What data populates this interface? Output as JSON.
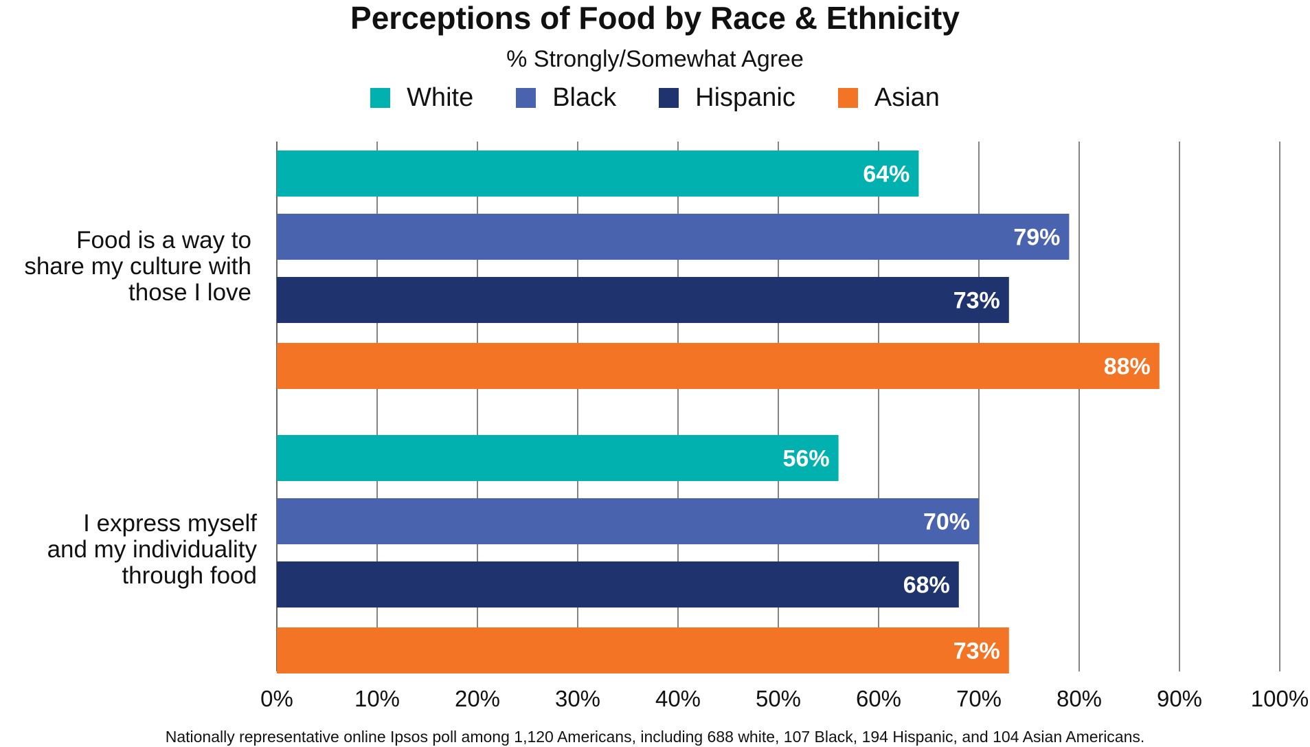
{
  "chart_data": {
    "type": "bar",
    "orientation": "horizontal",
    "title": "Perceptions of Food by Race & Ethnicity",
    "subtitle": "% Strongly/Somewhat Agree",
    "categories": [
      "Food is a way to share my culture with those I love",
      "I express myself and my individuality through food"
    ],
    "category_lines": [
      [
        "Food is a way to",
        "share my culture with",
        "those I love"
      ],
      [
        "I express myself",
        "and my individuality",
        "through food"
      ]
    ],
    "series": [
      {
        "name": "White",
        "color": "#00B1B0",
        "values": [
          64,
          56
        ]
      },
      {
        "name": "Black",
        "color": "#4A63AF",
        "values": [
          79,
          70
        ]
      },
      {
        "name": "Hispanic",
        "color": "#1F336E",
        "values": [
          73,
          68
        ]
      },
      {
        "name": "Asian",
        "color": "#F27424",
        "values": [
          88,
          73
        ]
      }
    ],
    "value_suffix": "%",
    "xlim": [
      0,
      100
    ],
    "xticks": [
      "0%",
      "10%",
      "20%",
      "30%",
      "40%",
      "50%",
      "60%",
      "70%",
      "80%",
      "90%",
      "100%"
    ],
    "grid": true,
    "legend_position": "top",
    "xlabel": "",
    "ylabel": ""
  },
  "footnote": "Nationally representative online Ipsos poll among 1,120 Americans, including 688 white, 107 Black, 194 Hispanic, and 104 Asian Americans."
}
